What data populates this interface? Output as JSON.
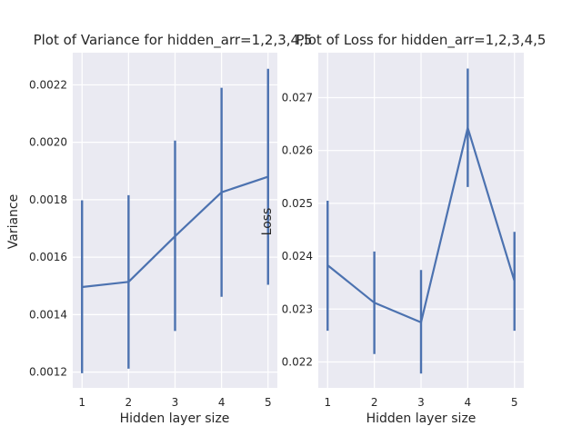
{
  "chart_data": [
    {
      "type": "line",
      "title": "Plot of Variance for hidden_arr=1,2,3,4,5",
      "xlabel": "Hidden layer size",
      "ylabel": "Variance",
      "x": [
        1,
        2,
        3,
        4,
        5
      ],
      "values": [
        0.001496,
        0.001514,
        0.001673,
        0.001826,
        0.00188
      ],
      "error_low": [
        0.001196,
        0.001212,
        0.001343,
        0.001462,
        0.001504
      ],
      "error_high": [
        0.001798,
        0.001816,
        0.002006,
        0.00219,
        0.002256
      ],
      "xlim": [
        0.8,
        5.2
      ],
      "ylim": [
        0.001145,
        0.002312
      ],
      "xticks": [
        1,
        2,
        3,
        4,
        5
      ],
      "yticks": [
        0.0012,
        0.0014,
        0.0016,
        0.0018,
        0.002,
        0.0022
      ],
      "ytick_labels": [
        "0.0012",
        "0.0014",
        "0.0016",
        "0.0018",
        "0.0020",
        "0.0022"
      ],
      "grid": true,
      "color": "#4c72b0",
      "background": "#eaeaf2"
    },
    {
      "type": "line",
      "title": "Plot of Loss for hidden_arr=1,2,3,4,5",
      "xlabel": "Hidden layer size",
      "ylabel": "Loss",
      "x": [
        1,
        2,
        3,
        4,
        5
      ],
      "values": [
        0.02383,
        0.02312,
        0.02275,
        0.02643,
        0.02353
      ],
      "error_low": [
        0.02259,
        0.02215,
        0.02178,
        0.02531,
        0.02259
      ],
      "error_high": [
        0.02505,
        0.02409,
        0.02374,
        0.02755,
        0.02446
      ],
      "xlim": [
        0.8,
        5.2
      ],
      "ylim": [
        0.02151,
        0.02785
      ],
      "xticks": [
        1,
        2,
        3,
        4,
        5
      ],
      "yticks": [
        0.022,
        0.023,
        0.024,
        0.025,
        0.026,
        0.027
      ],
      "ytick_labels": [
        "0.022",
        "0.023",
        "0.024",
        "0.025",
        "0.026",
        "0.027"
      ],
      "grid": true,
      "color": "#4c72b0",
      "background": "#eaeaf2"
    }
  ]
}
